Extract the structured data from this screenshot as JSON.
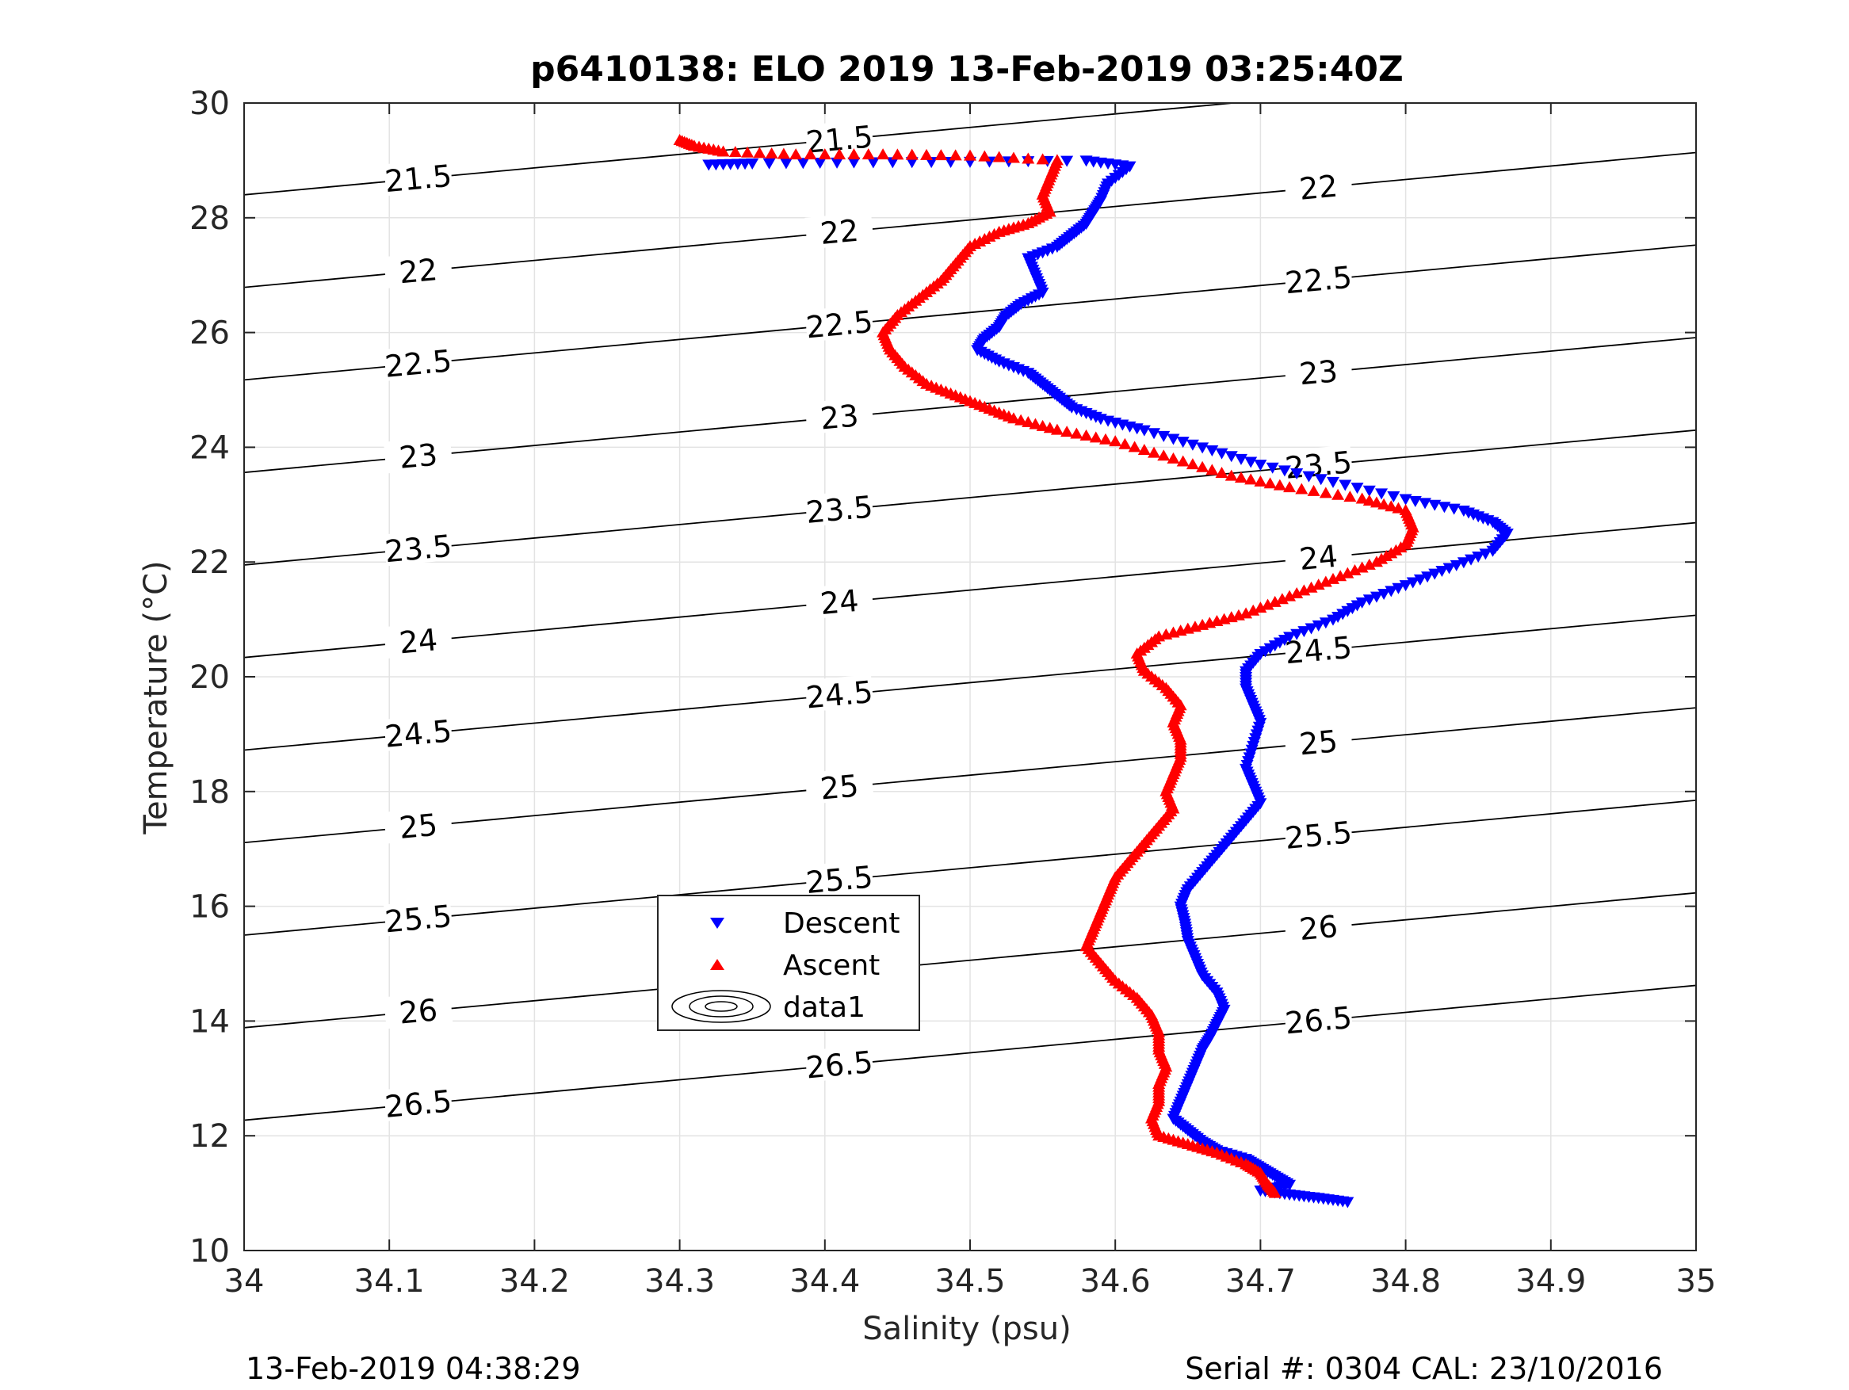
{
  "chart_data": {
    "type": "scatter",
    "title": "p6410138: ELO 2019 13-Feb-2019 03:25:40Z",
    "xlabel": "Salinity (psu)",
    "ylabel": "Temperature (°C)",
    "xlim": [
      34,
      35
    ],
    "ylim": [
      10,
      30
    ],
    "xticks": [
      34,
      34.1,
      34.2,
      34.3,
      34.4,
      34.5,
      34.6,
      34.7,
      34.8,
      34.9,
      35
    ],
    "xtick_labels": [
      "34",
      "34.1",
      "34.2",
      "34.3",
      "34.4",
      "34.5",
      "34.6",
      "34.7",
      "34.8",
      "34.9",
      "35"
    ],
    "yticks": [
      10,
      12,
      14,
      16,
      18,
      20,
      22,
      24,
      26,
      28,
      30
    ],
    "ytick_labels": [
      "10",
      "12",
      "14",
      "16",
      "18",
      "20",
      "22",
      "24",
      "26",
      "28",
      "30"
    ],
    "grid": true,
    "legend_position": "center-left",
    "footer_left": "13-Feb-2019 04:38:29",
    "footer_right": "Serial #: 0304  CAL: 23/10/2016",
    "series": [
      {
        "name": "Descent",
        "marker": "triangle-down",
        "color": "#0000ff",
        "points": [
          [
            34.76,
            10.85
          ],
          [
            34.74,
            10.92
          ],
          [
            34.72,
            10.98
          ],
          [
            34.7,
            11.05
          ],
          [
            34.72,
            11.15
          ],
          [
            34.71,
            11.3
          ],
          [
            34.7,
            11.45
          ],
          [
            34.69,
            11.6
          ],
          [
            34.67,
            11.75
          ],
          [
            34.66,
            11.9
          ],
          [
            34.65,
            12.1
          ],
          [
            34.64,
            12.3
          ],
          [
            34.645,
            12.6
          ],
          [
            34.65,
            12.9
          ],
          [
            34.655,
            13.2
          ],
          [
            34.66,
            13.5
          ],
          [
            34.665,
            13.7
          ],
          [
            34.67,
            13.95
          ],
          [
            34.675,
            14.2
          ],
          [
            34.67,
            14.5
          ],
          [
            34.66,
            14.8
          ],
          [
            34.655,
            15.1
          ],
          [
            34.65,
            15.4
          ],
          [
            34.648,
            15.7
          ],
          [
            34.645,
            16.0
          ],
          [
            34.65,
            16.3
          ],
          [
            34.66,
            16.6
          ],
          [
            34.67,
            16.9
          ],
          [
            34.68,
            17.2
          ],
          [
            34.69,
            17.5
          ],
          [
            34.7,
            17.8
          ],
          [
            34.695,
            18.1
          ],
          [
            34.69,
            18.4
          ],
          [
            34.695,
            18.8
          ],
          [
            34.7,
            19.2
          ],
          [
            34.695,
            19.5
          ],
          [
            34.69,
            19.8
          ],
          [
            34.69,
            20.1
          ],
          [
            34.7,
            20.4
          ],
          [
            34.72,
            20.7
          ],
          [
            34.75,
            21.0
          ],
          [
            34.77,
            21.3
          ],
          [
            34.8,
            21.6
          ],
          [
            34.83,
            21.9
          ],
          [
            34.86,
            22.2
          ],
          [
            34.87,
            22.5
          ],
          [
            34.86,
            22.7
          ],
          [
            34.84,
            22.9
          ],
          [
            34.8,
            23.1
          ],
          [
            34.75,
            23.4
          ],
          [
            34.7,
            23.7
          ],
          [
            34.66,
            24.0
          ],
          [
            34.62,
            24.3
          ],
          [
            34.59,
            24.5
          ],
          [
            34.57,
            24.7
          ],
          [
            34.56,
            24.9
          ],
          [
            34.55,
            25.1
          ],
          [
            34.54,
            25.3
          ],
          [
            34.52,
            25.5
          ],
          [
            34.505,
            25.7
          ],
          [
            34.51,
            25.9
          ],
          [
            34.52,
            26.1
          ],
          [
            34.525,
            26.3
          ],
          [
            34.535,
            26.5
          ],
          [
            34.55,
            26.7
          ],
          [
            34.545,
            27.0
          ],
          [
            34.54,
            27.3
          ],
          [
            34.56,
            27.5
          ],
          [
            34.57,
            27.7
          ],
          [
            34.58,
            27.9
          ],
          [
            34.585,
            28.1
          ],
          [
            34.59,
            28.3
          ],
          [
            34.595,
            28.6
          ],
          [
            34.61,
            28.9
          ],
          [
            34.58,
            29.0
          ],
          [
            34.5,
            28.98
          ],
          [
            34.42,
            28.97
          ],
          [
            34.35,
            28.95
          ],
          [
            34.32,
            28.93
          ]
        ]
      },
      {
        "name": "Ascent",
        "marker": "triangle-up",
        "color": "#ff0000",
        "points": [
          [
            34.71,
            11.0
          ],
          [
            34.705,
            11.15
          ],
          [
            34.7,
            11.35
          ],
          [
            34.69,
            11.5
          ],
          [
            34.67,
            11.7
          ],
          [
            34.65,
            11.85
          ],
          [
            34.63,
            12.0
          ],
          [
            34.625,
            12.3
          ],
          [
            34.63,
            12.6
          ],
          [
            34.63,
            12.9
          ],
          [
            34.635,
            13.2
          ],
          [
            34.63,
            13.5
          ],
          [
            34.63,
            13.8
          ],
          [
            34.625,
            14.1
          ],
          [
            34.615,
            14.4
          ],
          [
            34.6,
            14.7
          ],
          [
            34.59,
            15.0
          ],
          [
            34.58,
            15.3
          ],
          [
            34.585,
            15.6
          ],
          [
            34.59,
            15.9
          ],
          [
            34.595,
            16.2
          ],
          [
            34.6,
            16.5
          ],
          [
            34.61,
            16.8
          ],
          [
            34.62,
            17.1
          ],
          [
            34.63,
            17.4
          ],
          [
            34.64,
            17.7
          ],
          [
            34.635,
            18.0
          ],
          [
            34.64,
            18.3
          ],
          [
            34.645,
            18.6
          ],
          [
            34.645,
            18.9
          ],
          [
            34.64,
            19.2
          ],
          [
            34.645,
            19.5
          ],
          [
            34.635,
            19.8
          ],
          [
            34.62,
            20.1
          ],
          [
            34.615,
            20.4
          ],
          [
            34.63,
            20.7
          ],
          [
            34.66,
            20.9
          ],
          [
            34.69,
            21.1
          ],
          [
            34.72,
            21.4
          ],
          [
            34.75,
            21.7
          ],
          [
            34.78,
            22.0
          ],
          [
            34.8,
            22.3
          ],
          [
            34.805,
            22.6
          ],
          [
            34.8,
            22.9
          ],
          [
            34.77,
            23.1
          ],
          [
            34.72,
            23.3
          ],
          [
            34.68,
            23.5
          ],
          [
            34.64,
            23.8
          ],
          [
            34.6,
            24.1
          ],
          [
            34.56,
            24.3
          ],
          [
            34.53,
            24.5
          ],
          [
            34.51,
            24.7
          ],
          [
            34.49,
            24.9
          ],
          [
            34.47,
            25.1
          ],
          [
            34.455,
            25.4
          ],
          [
            34.445,
            25.7
          ],
          [
            34.44,
            26.0
          ],
          [
            34.45,
            26.3
          ],
          [
            34.465,
            26.6
          ],
          [
            34.48,
            26.9
          ],
          [
            34.49,
            27.2
          ],
          [
            34.5,
            27.5
          ],
          [
            34.52,
            27.75
          ],
          [
            34.54,
            27.9
          ],
          [
            34.555,
            28.1
          ],
          [
            34.55,
            28.4
          ],
          [
            34.555,
            28.7
          ],
          [
            34.56,
            29.0
          ],
          [
            34.5,
            29.08
          ],
          [
            34.44,
            29.1
          ],
          [
            34.38,
            29.1
          ],
          [
            34.33,
            29.15
          ],
          [
            34.31,
            29.25
          ],
          [
            34.3,
            29.35
          ]
        ]
      }
    ],
    "density_contours": {
      "name": "data1",
      "levels": [
        21.5,
        22,
        22.5,
        23,
        23.5,
        24,
        24.5,
        25,
        25.5,
        26,
        26.5
      ],
      "level_labels": [
        "21.5",
        "22",
        "22.5",
        "23",
        "23.5",
        "24",
        "24.5",
        "25",
        "25.5",
        "26",
        "26.5"
      ]
    },
    "legend": [
      "Descent",
      "Ascent",
      "data1"
    ]
  }
}
